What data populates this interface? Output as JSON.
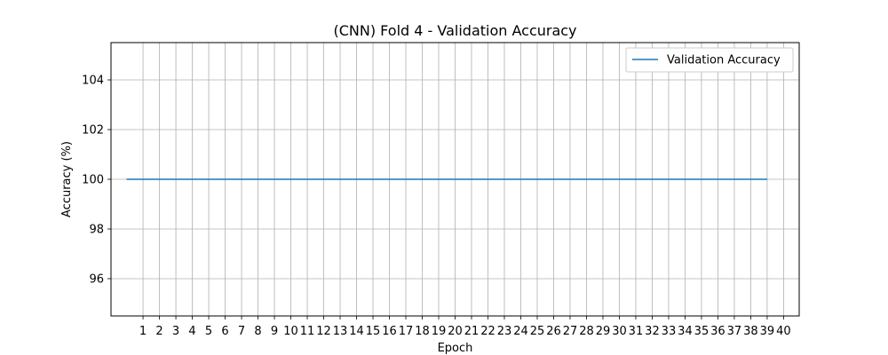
{
  "chart_data": {
    "type": "line",
    "title": "(CNN) Fold 4 - Validation Accuracy",
    "xlabel": "Epoch",
    "ylabel": "Accuracy (%)",
    "xlim": [
      -0.95,
      40.95
    ],
    "ylim": [
      94.5,
      105.5
    ],
    "x_ticks": [
      1,
      2,
      3,
      4,
      5,
      6,
      7,
      8,
      9,
      10,
      11,
      12,
      13,
      14,
      15,
      16,
      17,
      18,
      19,
      20,
      21,
      22,
      23,
      24,
      25,
      26,
      27,
      28,
      29,
      30,
      31,
      32,
      33,
      34,
      35,
      36,
      37,
      38,
      39,
      40
    ],
    "y_ticks": [
      96,
      98,
      100,
      102,
      104
    ],
    "grid": true,
    "legend_position": "top-right",
    "series": [
      {
        "name": "Validation Accuracy",
        "color": "#1f77b4",
        "x": [
          0,
          1,
          2,
          3,
          4,
          5,
          6,
          7,
          8,
          9,
          10,
          11,
          12,
          13,
          14,
          15,
          16,
          17,
          18,
          19,
          20,
          21,
          22,
          23,
          24,
          25,
          26,
          27,
          28,
          29,
          30,
          31,
          32,
          33,
          34,
          35,
          36,
          37,
          38,
          39
        ],
        "values": [
          100,
          100,
          100,
          100,
          100,
          100,
          100,
          100,
          100,
          100,
          100,
          100,
          100,
          100,
          100,
          100,
          100,
          100,
          100,
          100,
          100,
          100,
          100,
          100,
          100,
          100,
          100,
          100,
          100,
          100,
          100,
          100,
          100,
          100,
          100,
          100,
          100,
          100,
          100,
          100
        ]
      }
    ]
  }
}
